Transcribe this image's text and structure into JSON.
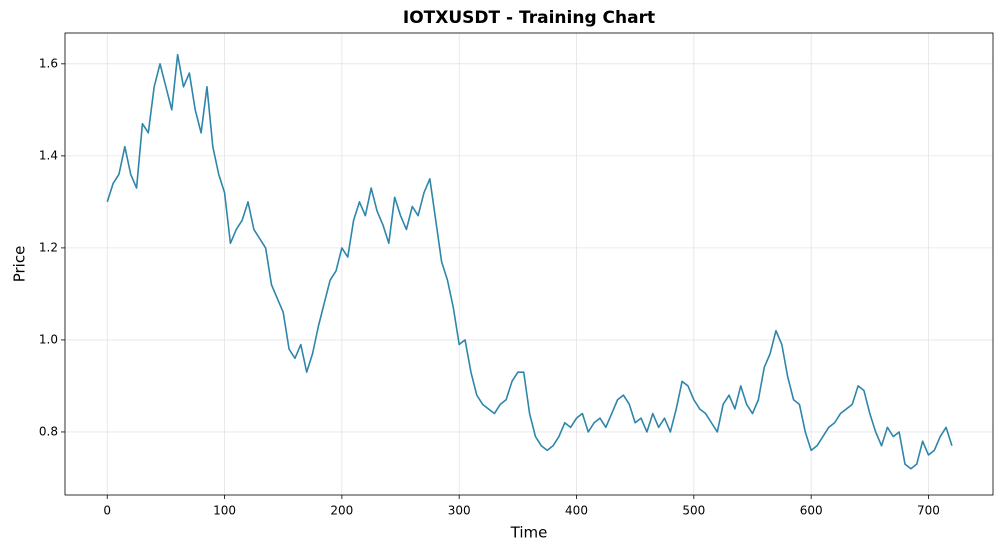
{
  "chart_data": {
    "type": "line",
    "title": "IOTXUSDT - Training Chart",
    "x_label": "Time",
    "y_label": "Price",
    "x": [
      0,
      5,
      10,
      15,
      20,
      25,
      30,
      35,
      40,
      45,
      50,
      55,
      60,
      65,
      70,
      75,
      80,
      85,
      90,
      95,
      100,
      105,
      110,
      115,
      120,
      125,
      130,
      135,
      140,
      145,
      150,
      155,
      160,
      165,
      170,
      175,
      180,
      185,
      190,
      195,
      200,
      205,
      210,
      215,
      220,
      225,
      230,
      235,
      240,
      245,
      250,
      255,
      260,
      265,
      270,
      275,
      280,
      285,
      290,
      295,
      300,
      305,
      310,
      315,
      320,
      325,
      330,
      335,
      340,
      345,
      350,
      355,
      360,
      365,
      370,
      375,
      380,
      385,
      390,
      395,
      400,
      405,
      410,
      415,
      420,
      425,
      430,
      435,
      440,
      445,
      450,
      455,
      460,
      465,
      470,
      475,
      480,
      485,
      490,
      495,
      500,
      505,
      510,
      515,
      520,
      525,
      530,
      535,
      540,
      545,
      550,
      555,
      560,
      565,
      570,
      575,
      580,
      585,
      590,
      595,
      600,
      605,
      610,
      615,
      620,
      625,
      630,
      635,
      640,
      645,
      650,
      655,
      660,
      665,
      670,
      675,
      680,
      685,
      690,
      695,
      700,
      705,
      710,
      715,
      720
    ],
    "series": [
      {
        "name": "Price",
        "color": "#2e86ab",
        "values": [
          1.3,
          1.34,
          1.36,
          1.42,
          1.36,
          1.33,
          1.47,
          1.45,
          1.55,
          1.6,
          1.55,
          1.5,
          1.62,
          1.55,
          1.58,
          1.5,
          1.45,
          1.55,
          1.42,
          1.36,
          1.32,
          1.21,
          1.24,
          1.26,
          1.3,
          1.24,
          1.22,
          1.2,
          1.12,
          1.09,
          1.06,
          0.98,
          0.96,
          0.99,
          0.93,
          0.97,
          1.03,
          1.08,
          1.13,
          1.15,
          1.2,
          1.18,
          1.26,
          1.3,
          1.27,
          1.33,
          1.28,
          1.25,
          1.21,
          1.31,
          1.27,
          1.24,
          1.29,
          1.27,
          1.32,
          1.35,
          1.26,
          1.17,
          1.13,
          1.07,
          0.99,
          1.0,
          0.93,
          0.88,
          0.86,
          0.85,
          0.84,
          0.86,
          0.87,
          0.91,
          0.93,
          0.93,
          0.84,
          0.79,
          0.77,
          0.76,
          0.77,
          0.79,
          0.82,
          0.81,
          0.83,
          0.84,
          0.8,
          0.82,
          0.83,
          0.81,
          0.84,
          0.87,
          0.88,
          0.86,
          0.82,
          0.83,
          0.8,
          0.84,
          0.81,
          0.83,
          0.8,
          0.85,
          0.91,
          0.9,
          0.87,
          0.85,
          0.84,
          0.82,
          0.8,
          0.86,
          0.88,
          0.85,
          0.9,
          0.86,
          0.84,
          0.87,
          0.94,
          0.97,
          1.02,
          0.99,
          0.92,
          0.87,
          0.86,
          0.8,
          0.76,
          0.77,
          0.79,
          0.81,
          0.82,
          0.84,
          0.85,
          0.86,
          0.9,
          0.89,
          0.84,
          0.8,
          0.77,
          0.81,
          0.79,
          0.8,
          0.73,
          0.72,
          0.73,
          0.78,
          0.75,
          0.76,
          0.79,
          0.81,
          0.77
        ]
      }
    ],
    "xlim": [
      -36,
      755
    ],
    "ylim": [
      0.663,
      1.667
    ],
    "xticks": [
      0,
      100,
      200,
      300,
      400,
      500,
      600,
      700
    ],
    "yticks": [
      0.8,
      {
        "value": 1.0,
        "label": "1.0"
      },
      1.2,
      1.4,
      1.6
    ],
    "grid": true
  }
}
